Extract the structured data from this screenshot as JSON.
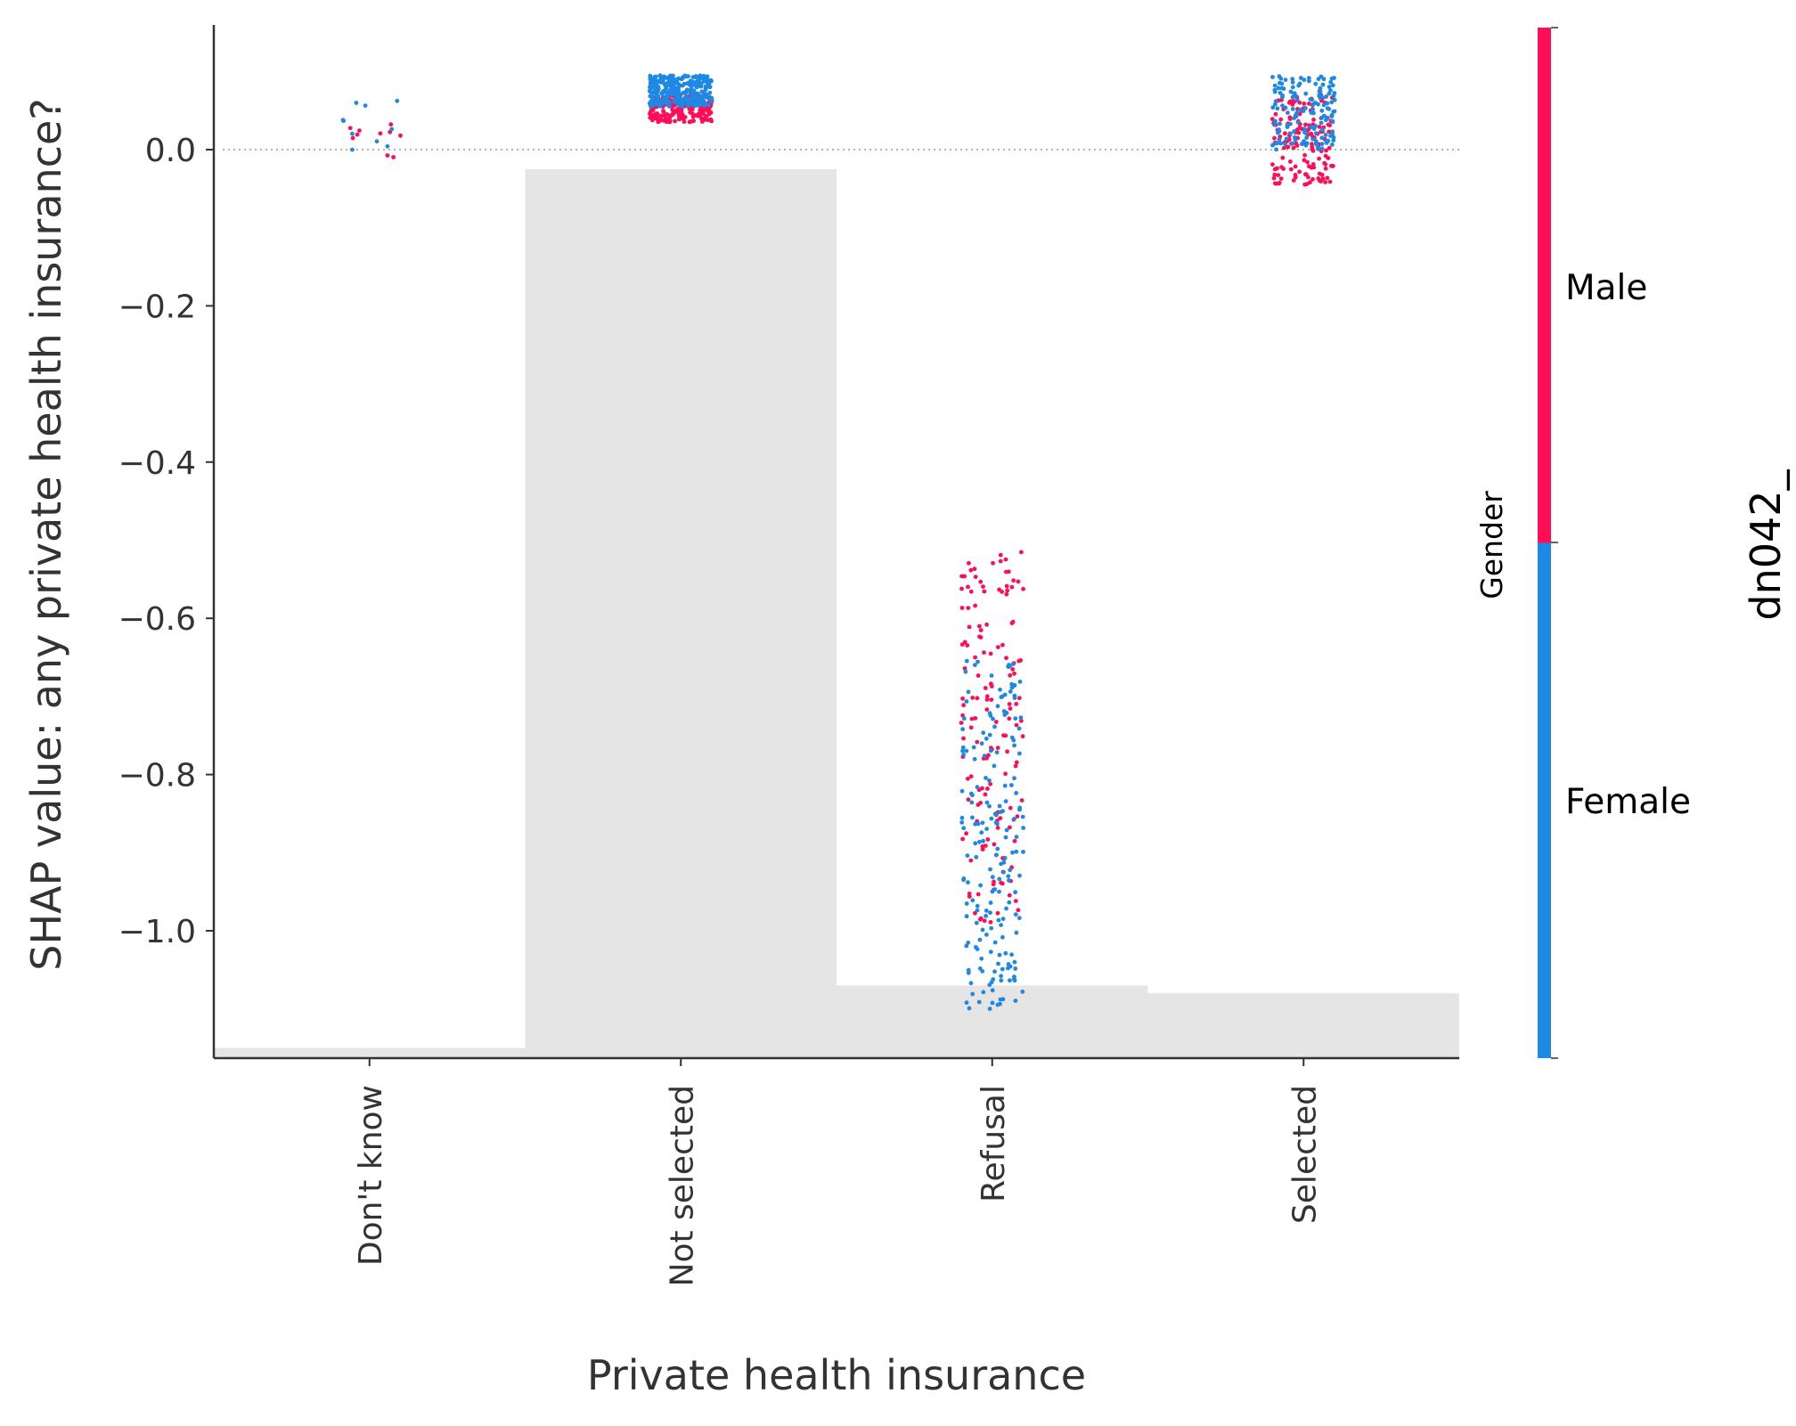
{
  "chart_data": {
    "type": "scatter",
    "title": "",
    "xlabel": "Private health insurance",
    "ylabel": "SHAP value: any private health insurance?",
    "categories": [
      "Don't know",
      "Not selected",
      "Refusal",
      "Selected"
    ],
    "ylim": [
      -1.16,
      0.16
    ],
    "yticks": [
      0.0,
      -0.2,
      -0.4,
      -0.6,
      -0.8,
      -1.0
    ],
    "ytick_labels": [
      "0.0",
      "−0.2",
      "−0.4",
      "−0.6",
      "−0.8",
      "−1.0"
    ],
    "zero_line": true,
    "grid": false,
    "histogram_bars": [
      {
        "category": "Don't know",
        "top": -1.15
      },
      {
        "category": "Not selected",
        "top": -0.025
      },
      {
        "category": "Refusal",
        "top": -1.07
      },
      {
        "category": "Selected",
        "top": -1.08
      }
    ],
    "series": [
      {
        "name": "Male",
        "color": "#ff0d57",
        "groups": [
          {
            "category": "Don't know",
            "count": 10,
            "min": -0.02,
            "max": 0.04
          },
          {
            "category": "Not selected",
            "count": 220,
            "min": 0.035,
            "max": 0.07
          },
          {
            "category": "Refusal",
            "count": 150,
            "min": -0.99,
            "max": -0.51
          },
          {
            "category": "Selected",
            "count": 150,
            "min": -0.045,
            "max": 0.07
          }
        ]
      },
      {
        "name": "Female",
        "color": "#1e88e5",
        "groups": [
          {
            "category": "Don't know",
            "count": 10,
            "min": -0.02,
            "max": 0.065
          },
          {
            "category": "Not selected",
            "count": 320,
            "min": 0.055,
            "max": 0.095
          },
          {
            "category": "Refusal",
            "count": 190,
            "min": -1.1,
            "max": -0.65
          },
          {
            "category": "Selected",
            "count": 150,
            "min": 0.0,
            "max": 0.095
          }
        ]
      }
    ],
    "colorbar": {
      "label": "Gender",
      "ticks": [
        "Male",
        "Female"
      ],
      "colors": {
        "top": "#ff0d57",
        "bottom": "#1e88e5"
      }
    },
    "side_label": "dn042_"
  }
}
